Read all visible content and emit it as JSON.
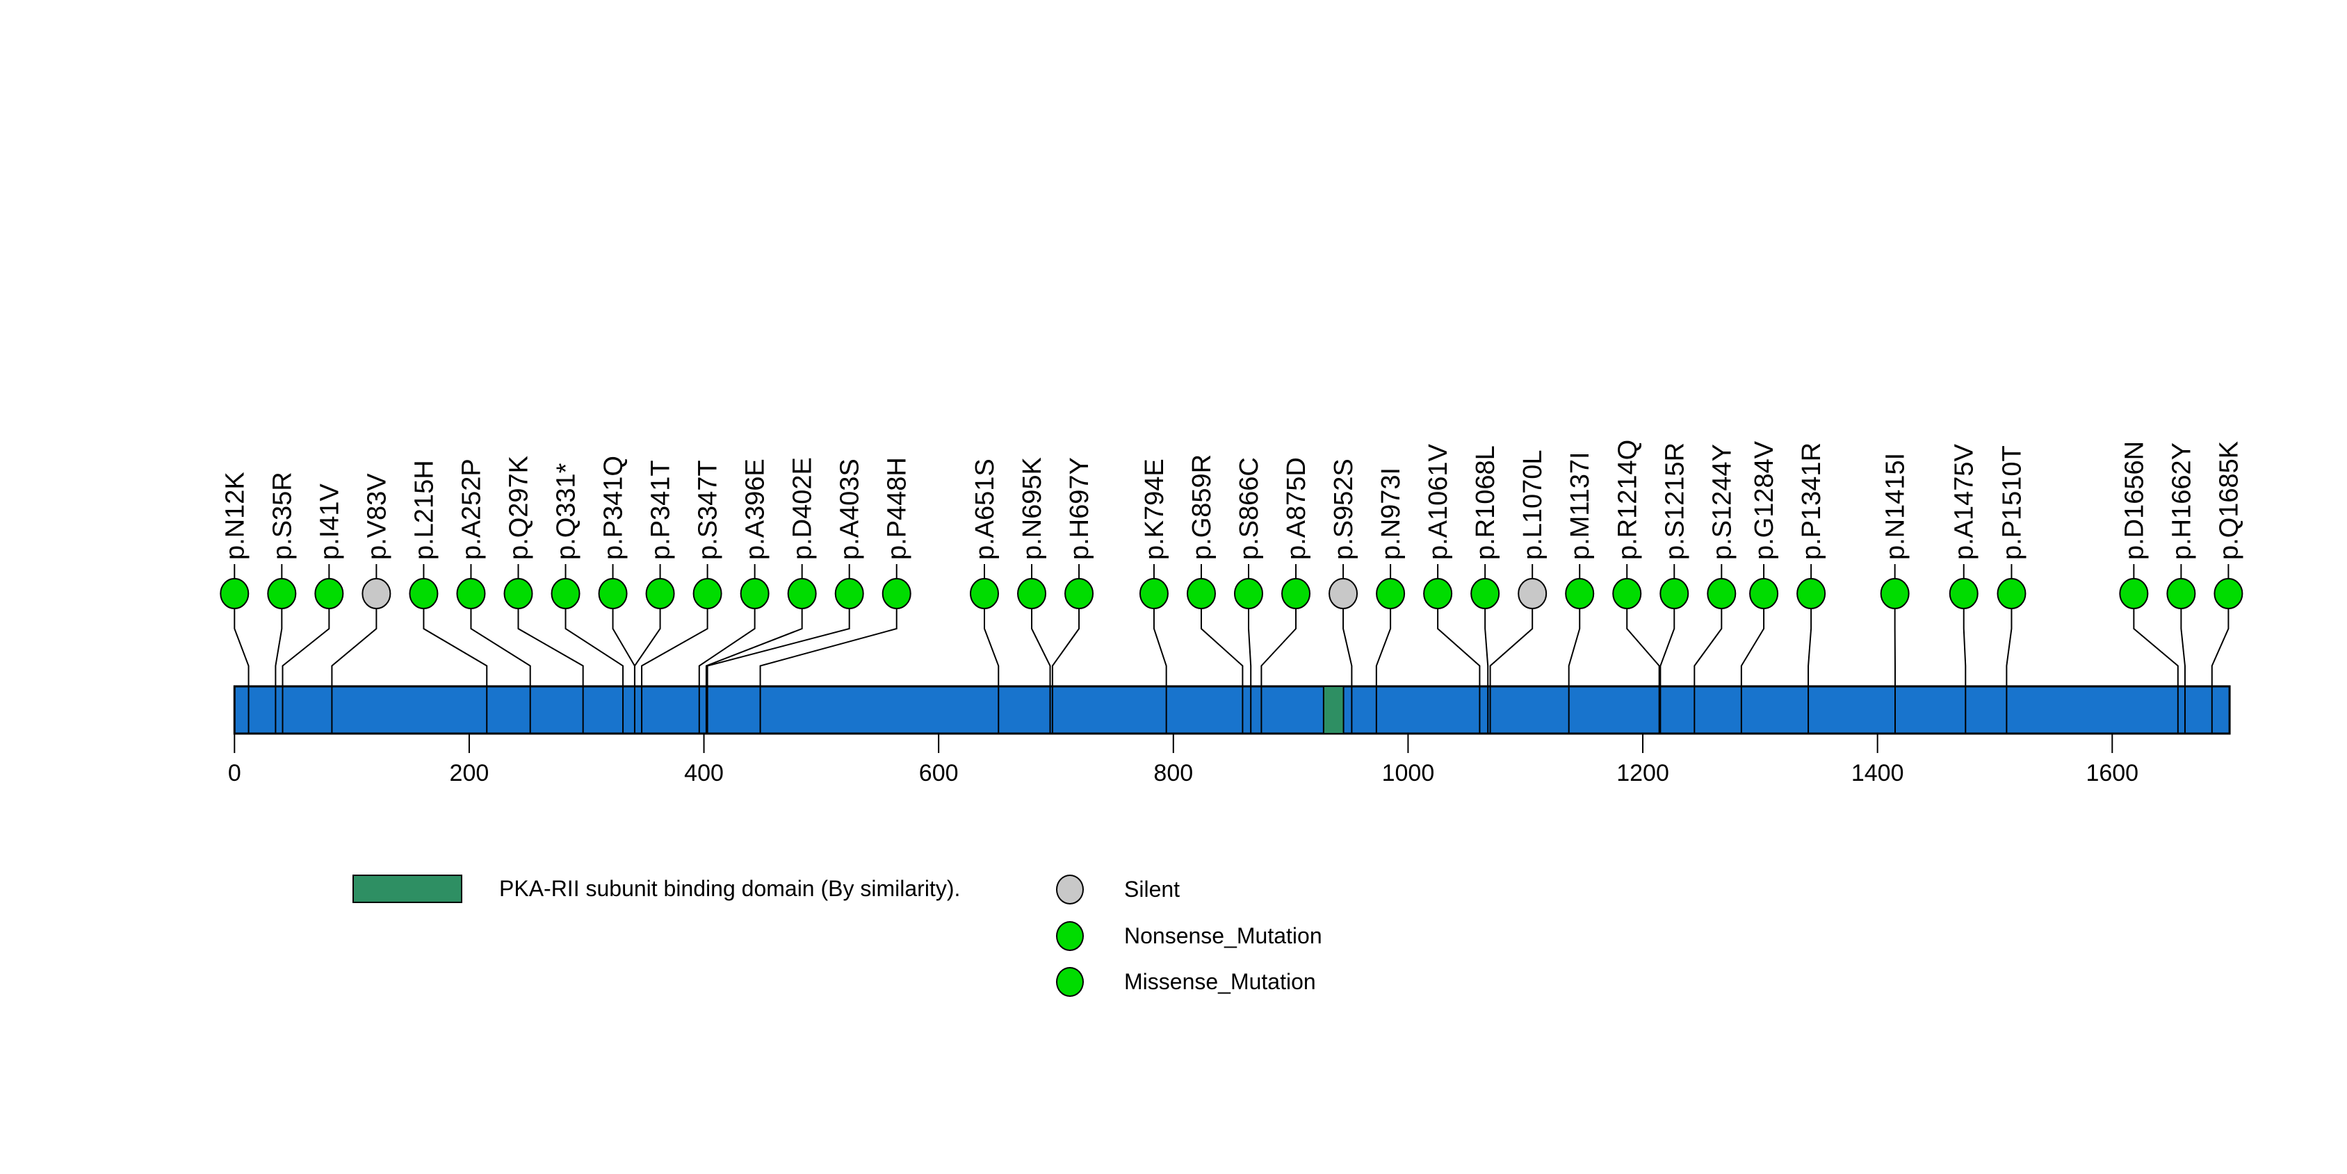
{
  "chart_data": {
    "type": "lollipop",
    "title": "",
    "protein_length": 1700,
    "xlim": [
      0,
      1700
    ],
    "x_ticks": [
      0,
      200,
      400,
      600,
      800,
      1000,
      1200,
      1400,
      1600
    ],
    "grid": false,
    "protein_bar_color": "#1874CD",
    "line_color": "#000000",
    "domains": [
      {
        "name": "PKA-RII subunit binding domain (By similarity).",
        "start": 928,
        "end": 945,
        "color": "#2E8F63"
      }
    ],
    "mutation_types": {
      "Silent": "#C8C8C8",
      "Nonsense_Mutation": "#00DC00",
      "Missense_Mutation": "#00DC00"
    },
    "mutations": [
      {
        "label": "p.N12K",
        "residue": 12,
        "type": "Missense_Mutation",
        "display_pos": 0
      },
      {
        "label": "p.S35R",
        "residue": 35,
        "type": "Missense_Mutation",
        "display_pos": 40.3
      },
      {
        "label": "p.I41V",
        "residue": 41,
        "type": "Missense_Mutation",
        "display_pos": 80.6
      },
      {
        "label": "p.V83V",
        "residue": 83,
        "type": "Silent",
        "display_pos": 120.9
      },
      {
        "label": "p.L215H",
        "residue": 215,
        "type": "Missense_Mutation",
        "display_pos": 161.2
      },
      {
        "label": "p.A252P",
        "residue": 252,
        "type": "Missense_Mutation",
        "display_pos": 201.5
      },
      {
        "label": "p.Q297K",
        "residue": 297,
        "type": "Missense_Mutation",
        "display_pos": 241.8
      },
      {
        "label": "p.Q331*",
        "residue": 331,
        "type": "Nonsense_Mutation",
        "display_pos": 282.1
      },
      {
        "label": "p.P341Q",
        "residue": 341,
        "type": "Missense_Mutation",
        "display_pos": 322.4
      },
      {
        "label": "p.P341T",
        "residue": 341,
        "type": "Missense_Mutation",
        "display_pos": 362.7
      },
      {
        "label": "p.S347T",
        "residue": 347,
        "type": "Missense_Mutation",
        "display_pos": 403.0
      },
      {
        "label": "p.A396E",
        "residue": 396,
        "type": "Missense_Mutation",
        "display_pos": 443.3
      },
      {
        "label": "p.D402E",
        "residue": 402,
        "type": "Missense_Mutation",
        "display_pos": 483.6
      },
      {
        "label": "p.A403S",
        "residue": 403,
        "type": "Missense_Mutation",
        "display_pos": 523.9
      },
      {
        "label": "p.P448H",
        "residue": 448,
        "type": "Missense_Mutation",
        "display_pos": 564.2
      },
      {
        "label": "p.A651S",
        "residue": 651,
        "type": "Missense_Mutation",
        "display_pos": 639.0
      },
      {
        "label": "p.N695K",
        "residue": 695,
        "type": "Missense_Mutation",
        "display_pos": 679.3
      },
      {
        "label": "p.H697Y",
        "residue": 697,
        "type": "Missense_Mutation",
        "display_pos": 719.6
      },
      {
        "label": "p.K794E",
        "residue": 794,
        "type": "Missense_Mutation",
        "display_pos": 783.5
      },
      {
        "label": "p.G859R",
        "residue": 859,
        "type": "Missense_Mutation",
        "display_pos": 823.8
      },
      {
        "label": "p.S866C",
        "residue": 866,
        "type": "Missense_Mutation",
        "display_pos": 864.1
      },
      {
        "label": "p.A875D",
        "residue": 875,
        "type": "Missense_Mutation",
        "display_pos": 904.4
      },
      {
        "label": "p.S952S",
        "residue": 952,
        "type": "Silent",
        "display_pos": 944.7
      },
      {
        "label": "p.N973I",
        "residue": 973,
        "type": "Missense_Mutation",
        "display_pos": 985.0
      },
      {
        "label": "p.A1061V",
        "residue": 1061,
        "type": "Missense_Mutation",
        "display_pos": 1025.3
      },
      {
        "label": "p.R1068L",
        "residue": 1068,
        "type": "Missense_Mutation",
        "display_pos": 1065.6
      },
      {
        "label": "p.L1070L",
        "residue": 1070,
        "type": "Silent",
        "display_pos": 1105.9
      },
      {
        "label": "p.M1137I",
        "residue": 1137,
        "type": "Missense_Mutation",
        "display_pos": 1146.2
      },
      {
        "label": "p.R1214Q",
        "residue": 1214,
        "type": "Missense_Mutation",
        "display_pos": 1186.5
      },
      {
        "label": "p.S1215R",
        "residue": 1215,
        "type": "Missense_Mutation",
        "display_pos": 1226.8
      },
      {
        "label": "p.S1244Y",
        "residue": 1244,
        "type": "Missense_Mutation",
        "display_pos": 1267.1
      },
      {
        "label": "p.G1284V",
        "residue": 1284,
        "type": "Missense_Mutation",
        "display_pos": 1303.1
      },
      {
        "label": "p.P1341R",
        "residue": 1341,
        "type": "Missense_Mutation",
        "display_pos": 1343.4
      },
      {
        "label": "p.N1415I",
        "residue": 1415,
        "type": "Missense_Mutation",
        "display_pos": 1414.8
      },
      {
        "label": "p.A1475V",
        "residue": 1475,
        "type": "Missense_Mutation",
        "display_pos": 1473.5
      },
      {
        "label": "p.P1510T",
        "residue": 1510,
        "type": "Missense_Mutation",
        "display_pos": 1514.2
      },
      {
        "label": "p.D1656N",
        "residue": 1656,
        "type": "Missense_Mutation",
        "display_pos": 1618.4
      },
      {
        "label": "p.H1662Y",
        "residue": 1662,
        "type": "Missense_Mutation",
        "display_pos": 1658.7
      },
      {
        "label": "p.Q1685K",
        "residue": 1685,
        "type": "Missense_Mutation",
        "display_pos": 1699.0
      }
    ],
    "legend": {
      "position": "bottom",
      "domain_item": {
        "label": "PKA-RII subunit binding domain (By similarity).",
        "color": "#2E8F63"
      },
      "items": [
        {
          "label": "Silent",
          "color": "#C8C8C8"
        },
        {
          "label": "Nonsense_Mutation",
          "color": "#00DC00"
        },
        {
          "label": "Missense_Mutation",
          "color": "#00DC00"
        }
      ]
    }
  }
}
